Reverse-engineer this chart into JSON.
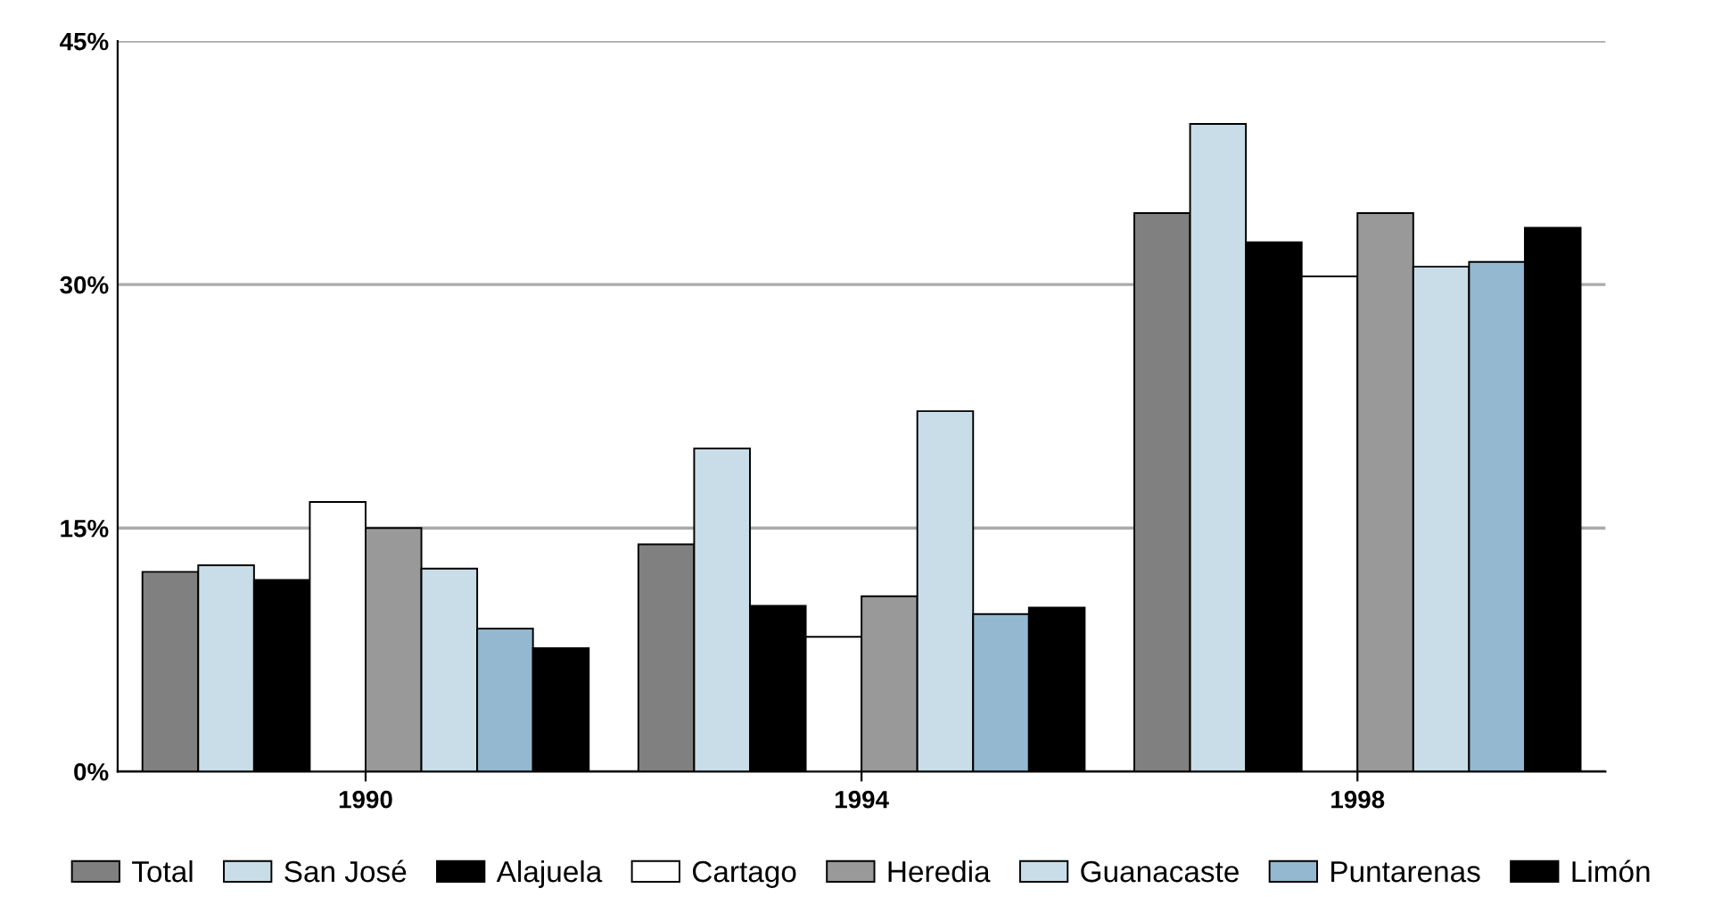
{
  "chart_data": {
    "type": "bar",
    "categories": [
      "1990",
      "1994",
      "1998"
    ],
    "series": [
      {
        "name": "Total",
        "color": "#808080",
        "values": [
          12.3,
          14.0,
          34.4
        ]
      },
      {
        "name": "San José",
        "color": "#c9dde8",
        "values": [
          12.7,
          19.9,
          39.9
        ]
      },
      {
        "name": "Alajuela",
        "color": "#000000",
        "values": [
          11.8,
          10.2,
          32.6
        ]
      },
      {
        "name": "Cartago",
        "color": "#ffffff",
        "values": [
          16.6,
          8.3,
          30.5
        ]
      },
      {
        "name": "Heredia",
        "color": "#999999",
        "values": [
          15.0,
          10.8,
          34.4
        ]
      },
      {
        "name": "Guanacaste",
        "color": "#c9dde8",
        "values": [
          12.5,
          22.2,
          31.1
        ]
      },
      {
        "name": "Puntarenas",
        "color": "#93b8cf",
        "values": [
          8.8,
          9.7,
          31.4
        ]
      },
      {
        "name": "Limón",
        "color": "#000000",
        "values": [
          7.6,
          10.1,
          33.5
        ]
      }
    ],
    "ylim": [
      0,
      45
    ],
    "yticks": [
      {
        "value": 0,
        "label": "0%"
      },
      {
        "value": 15,
        "label": "15%"
      },
      {
        "value": 30,
        "label": "30%"
      },
      {
        "value": 45,
        "label": "45%"
      }
    ],
    "grid": "y",
    "legend": "bottom"
  }
}
